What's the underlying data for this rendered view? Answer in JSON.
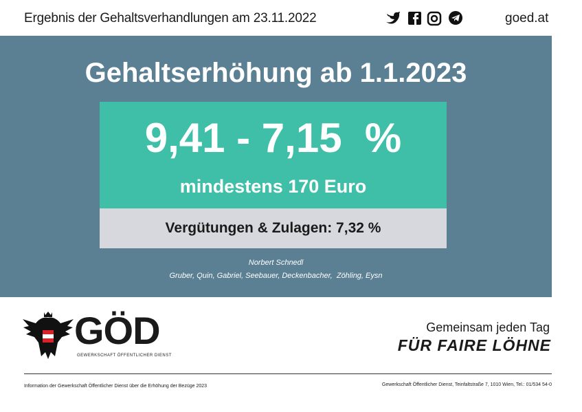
{
  "header": {
    "title": "Ergebnis der Gehaltsverhandlungen am 23.11.2022",
    "site": "goed.at"
  },
  "banner": {
    "heading": "Gehaltserhöhung ab 1.1.2023",
    "range": "9,41 - 7,15  %",
    "minimum": "mindestens 170 Euro",
    "allowances": "Vergütungen & Zulagen: 7,32 %",
    "author": "Norbert Schnedl",
    "team": "Gruber, Quin, Gabriel, Seebauer, Deckenbacher,  Zöhling, Eysn"
  },
  "logo": {
    "text": "GÖD",
    "subtitle": "Gewerkschaft Öffentlicher Dienst"
  },
  "slogan": {
    "line1": "Gemeinsam jeden Tag",
    "line2": "FÜR FAIRE LÖHNE"
  },
  "footer": {
    "left": "Information der Gewerkschaft Öffentlicher Dienst über die Erhöhung der Bezüge 2023",
    "right": "Gewerkschaft Öffentlicher Dienst, Teinfaltstraße 7, 1010 Wien, Tel.: 01/534 54-0"
  }
}
